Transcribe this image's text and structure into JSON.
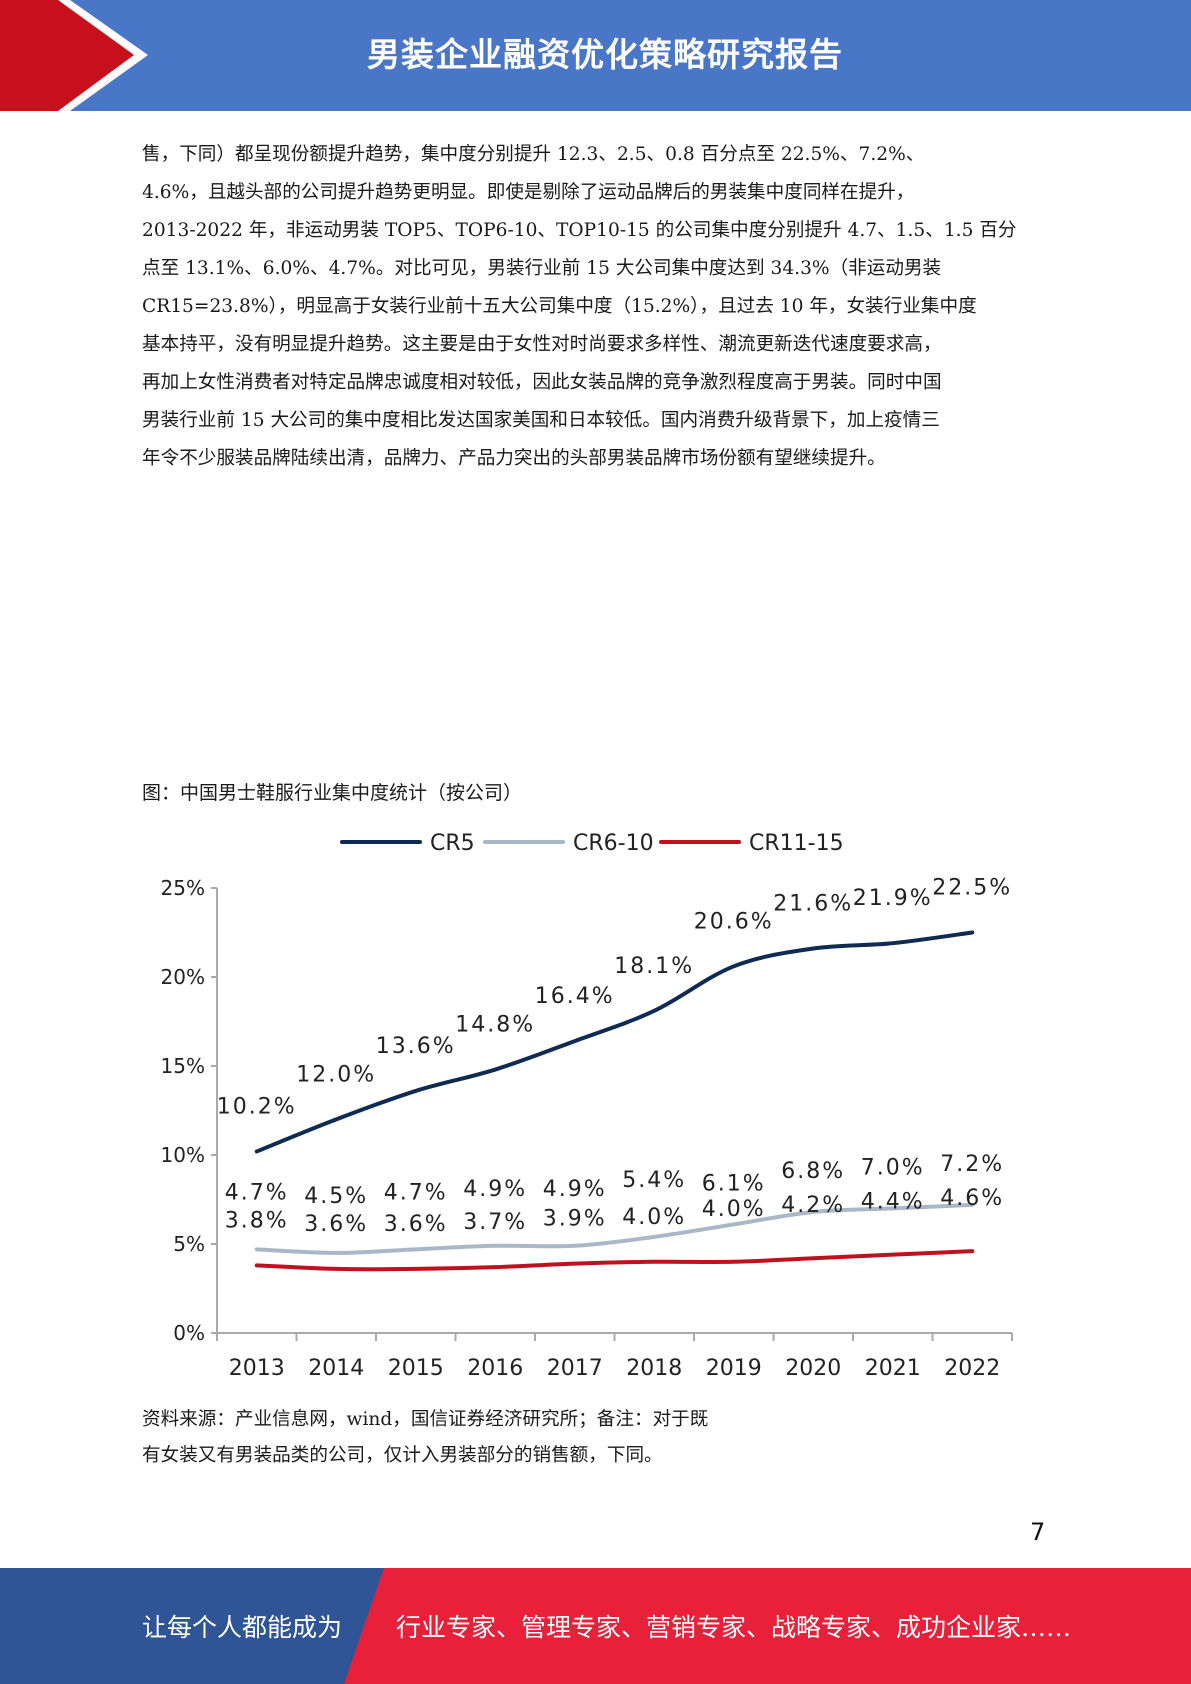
{
  "header": {
    "title": "男装企业融资优化策略研究报告",
    "bar_color": "#4a76c8",
    "accent_color": "#c8101c"
  },
  "body": {
    "lines": [
      "售，下同）都呈现份额提升趋势，集中度分别提升 12.3、2.5、0.8 百分点至 22.5%、7.2%、",
      "4.6%，且越头部的公司提升趋势更明显。即使是剔除了运动品牌后的男装集中度同样在提升，",
      "2013-2022 年，非运动男装 TOP5、TOP6-10、TOP10-15 的公司集中度分别提升 4.7、1.5、1.5 百分",
      "点至 13.1%、6.0%、4.7%。对比可见，男装行业前 15 大公司集中度达到 34.3%（非运动男装",
      "CR15=23.8%），明显高于女装行业前十五大公司集中度（15.2%），且过去 10 年，女装行业集中度",
      "基本持平，没有明显提升趋势。这主要是由于女性对时尚要求多样性、潮流更新迭代速度要求高，",
      "再加上女性消费者对特定品牌忠诚度相对较低，因此女装品牌的竞争激烈程度高于男装。同时中国",
      "男装行业前 15 大公司的集中度相比发达国家美国和日本较低。国内消费升级背景下，加上疫情三",
      "年令不少服装品牌陆续出清，品牌力、产品力突出的头部男装品牌市场份额有望继续提升。"
    ]
  },
  "figure": {
    "caption": "图：中国男士鞋服行业集中度统计（按公司）"
  },
  "chart_data": {
    "type": "line",
    "categories": [
      "2013",
      "2014",
      "2015",
      "2016",
      "2017",
      "2018",
      "2019",
      "2020",
      "2021",
      "2022"
    ],
    "series": [
      {
        "name": "CR5",
        "color": "#0f2b52",
        "values": [
          10.2,
          12.0,
          13.6,
          14.8,
          16.4,
          18.1,
          20.6,
          21.6,
          21.9,
          22.5
        ],
        "labels": [
          "10.2%",
          "12.0%",
          "13.6%",
          "14.8%",
          "16.4%",
          "18.1%",
          "20.6%",
          "21.6%",
          "21.9%",
          "22.5%"
        ]
      },
      {
        "name": "CR6-10",
        "color": "#a9b7c8",
        "values": [
          4.7,
          4.5,
          4.7,
          4.9,
          4.9,
          5.4,
          6.1,
          6.8,
          7.0,
          7.2
        ],
        "labels": [
          "4.7%",
          "4.5%",
          "4.7%",
          "4.9%",
          "4.9%",
          "5.4%",
          "6.1%",
          "6.8%",
          "7.0%",
          "7.2%"
        ]
      },
      {
        "name": "CR11-15",
        "color": "#c0111f",
        "values": [
          3.8,
          3.6,
          3.6,
          3.7,
          3.9,
          4.0,
          4.0,
          4.2,
          4.4,
          4.6
        ],
        "labels": [
          "3.8%",
          "3.6%",
          "3.6%",
          "3.7%",
          "3.9%",
          "4.0%",
          "4.0%",
          "4.2%",
          "4.4%",
          "4.6%"
        ]
      }
    ],
    "y_ticks": [
      "0%",
      "5%",
      "10%",
      "15%",
      "20%",
      "25%"
    ],
    "y_tick_values": [
      0,
      5,
      10,
      15,
      20,
      25
    ],
    "ylim": [
      0,
      25
    ],
    "legend_position": "top",
    "grid": false,
    "title": "",
    "xlabel": "",
    "ylabel": ""
  },
  "source": {
    "lines": [
      "资料来源：产业信息网，wind，国信证券经济研究所；备注：对于既",
      "有女装又有男装品类的公司，仅计入男装部分的销售额，下同。"
    ]
  },
  "page": {
    "number": "7"
  },
  "footer": {
    "left_text": "让每个人都能成为",
    "right_text": "行业专家、管理专家、营销专家、战略专家、成功企业家……",
    "left_color": "#2f5597",
    "right_color": "#e8203a"
  }
}
